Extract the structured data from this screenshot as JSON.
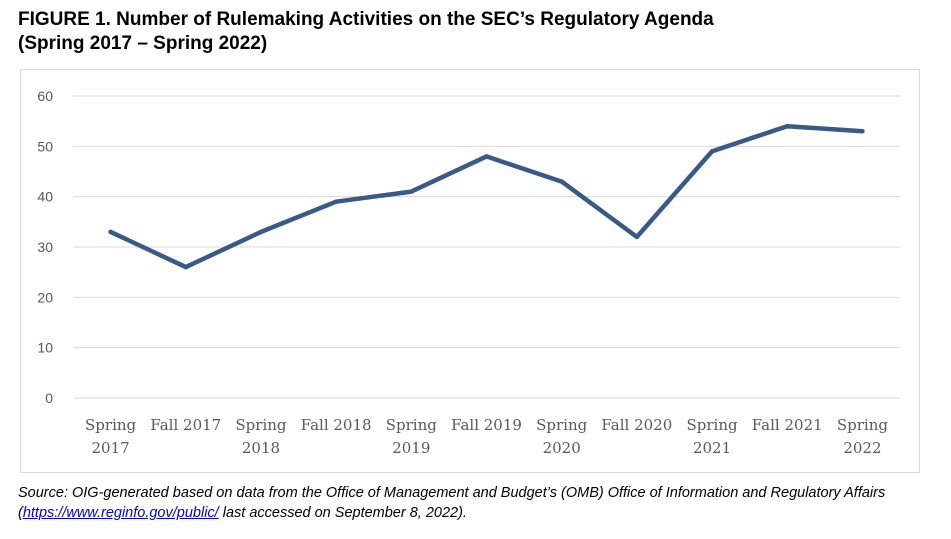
{
  "figure": {
    "title_line1": "FIGURE 1. Number of Rulemaking Activities on the SEC’s Regulatory Agenda",
    "title_line2": "(Spring 2017 – Spring 2022)",
    "source_prefix": "Source: OIG-generated based on data from the Office of Management and Budget’s (OMB) Office of Information and Regulatory Affairs (",
    "source_link": "https://www.reginfo.gov/public/",
    "source_suffix": " last accessed on September 8, 2022)."
  },
  "chart_data": {
    "type": "line",
    "title": "",
    "xlabel": "",
    "ylabel": "",
    "categories": [
      [
        "Spring",
        "2017"
      ],
      [
        "Fall 2017"
      ],
      [
        "Spring",
        "2018"
      ],
      [
        "Fall 2018"
      ],
      [
        "Spring",
        "2019"
      ],
      [
        "Fall 2019"
      ],
      [
        "Spring",
        "2020"
      ],
      [
        "Fall 2020"
      ],
      [
        "Spring",
        "2021"
      ],
      [
        "Fall 2021"
      ],
      [
        "Spring",
        "2022"
      ]
    ],
    "series": [
      {
        "values": [
          33,
          26,
          33,
          39,
          41,
          48,
          43,
          32,
          49,
          54,
          53
        ],
        "color": "#3a5a85"
      }
    ],
    "ylim": [
      0,
      60
    ],
    "yticks": [
      0,
      10,
      20,
      30,
      40,
      50,
      60
    ],
    "grid": true,
    "gridColor": "#d9d9d9"
  }
}
